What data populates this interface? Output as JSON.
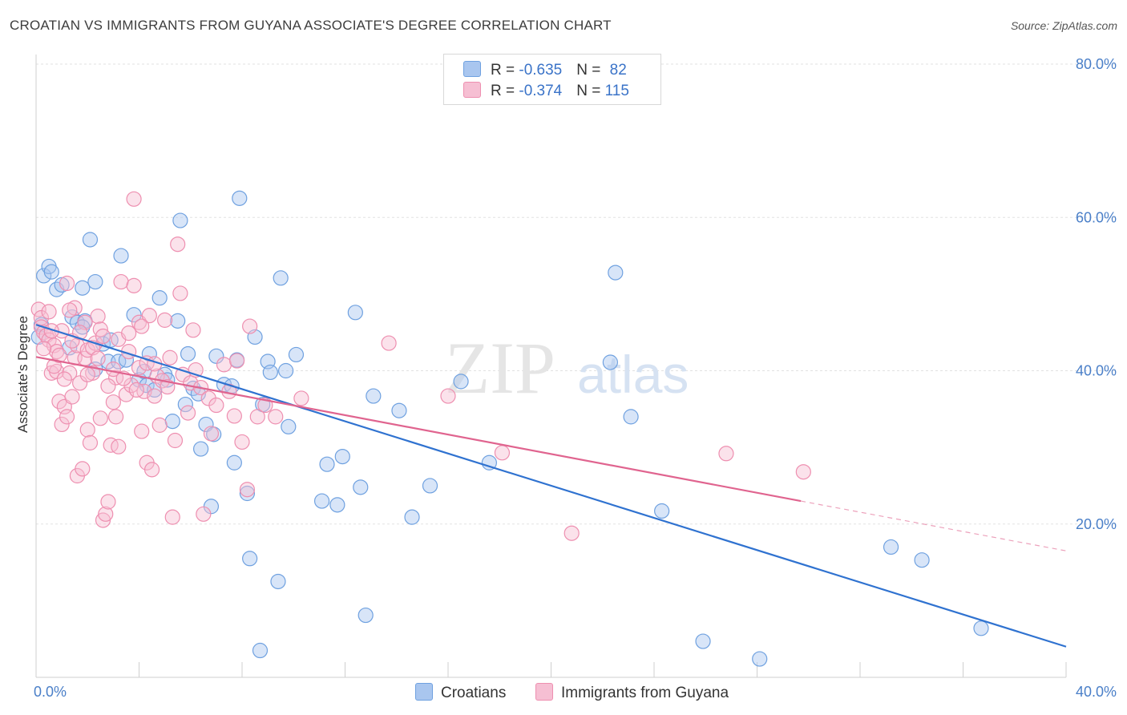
{
  "title": "CROATIAN VS IMMIGRANTS FROM GUYANA ASSOCIATE'S DEGREE CORRELATION CHART",
  "source": "Source: ZipAtlas.com",
  "watermark": {
    "zip": "ZIP",
    "atlas": "atlas"
  },
  "legend": {
    "rows": [
      {
        "r_label": "R = ",
        "r_value": "-0.635",
        "n_label": "N = ",
        "n_value": "82"
      },
      {
        "r_label": "R = ",
        "r_value": "-0.374",
        "n_label": "N = ",
        "n_value": "115"
      }
    ]
  },
  "chart_data": {
    "type": "scatter",
    "title": "CROATIAN VS IMMIGRANTS FROM GUYANA ASSOCIATE'S DEGREE CORRELATION CHART",
    "xlabel": "",
    "ylabel": "Associate's Degree",
    "xlim": [
      0,
      40
    ],
    "ylim": [
      0,
      80
    ],
    "x_tick_labels": [
      "0.0%",
      "40.0%"
    ],
    "y_ticks": [
      20,
      40,
      60,
      80
    ],
    "y_tick_labels": [
      "20.0%",
      "40.0%",
      "60.0%",
      "80.0%"
    ],
    "grid": true,
    "legend_position": "top-center",
    "series": [
      {
        "name": "Croatians",
        "color": "#6fa1e0",
        "fill": "#a9c6ef",
        "line_color": "#2f72d0",
        "trend": {
          "x": [
            0,
            40
          ],
          "y": [
            46.0,
            4.0
          ]
        },
        "points": [
          [
            0.2,
            46.0
          ],
          [
            0.3,
            52.4
          ],
          [
            0.5,
            53.6
          ],
          [
            0.6,
            52.9
          ],
          [
            0.8,
            50.6
          ],
          [
            1.0,
            51.2
          ],
          [
            1.3,
            43.0
          ],
          [
            1.4,
            47.0
          ],
          [
            1.6,
            46.3
          ],
          [
            1.8,
            50.8
          ],
          [
            1.9,
            46.5
          ],
          [
            2.1,
            57.1
          ],
          [
            2.3,
            51.6
          ],
          [
            2.3,
            40.2
          ],
          [
            2.6,
            43.5
          ],
          [
            2.8,
            41.2
          ],
          [
            2.9,
            44.0
          ],
          [
            3.2,
            41.2
          ],
          [
            3.3,
            55.0
          ],
          [
            3.5,
            41.4
          ],
          [
            3.8,
            47.3
          ],
          [
            4.0,
            38.8
          ],
          [
            4.2,
            39.9
          ],
          [
            4.3,
            38.1
          ],
          [
            4.4,
            42.2
          ],
          [
            4.6,
            37.5
          ],
          [
            4.8,
            49.5
          ],
          [
            5.0,
            39.5
          ],
          [
            5.1,
            38.8
          ],
          [
            5.3,
            33.4
          ],
          [
            5.5,
            46.5
          ],
          [
            5.6,
            59.6
          ],
          [
            5.8,
            35.6
          ],
          [
            5.9,
            42.2
          ],
          [
            6.1,
            37.7
          ],
          [
            6.3,
            37.0
          ],
          [
            6.4,
            29.8
          ],
          [
            6.6,
            33.0
          ],
          [
            6.8,
            22.3
          ],
          [
            6.9,
            31.7
          ],
          [
            7.0,
            41.9
          ],
          [
            7.3,
            38.2
          ],
          [
            7.6,
            38.0
          ],
          [
            7.7,
            28.0
          ],
          [
            7.8,
            41.4
          ],
          [
            7.9,
            62.5
          ],
          [
            8.2,
            24.0
          ],
          [
            8.3,
            15.5
          ],
          [
            8.5,
            44.4
          ],
          [
            8.7,
            3.5
          ],
          [
            8.8,
            35.6
          ],
          [
            9.0,
            41.2
          ],
          [
            9.1,
            39.8
          ],
          [
            9.4,
            12.5
          ],
          [
            9.5,
            52.1
          ],
          [
            9.7,
            40.0
          ],
          [
            9.8,
            32.7
          ],
          [
            10.1,
            42.1
          ],
          [
            11.1,
            23.0
          ],
          [
            11.3,
            27.8
          ],
          [
            11.7,
            22.5
          ],
          [
            11.9,
            28.8
          ],
          [
            12.4,
            47.6
          ],
          [
            12.6,
            24.8
          ],
          [
            12.8,
            8.1
          ],
          [
            13.1,
            36.7
          ],
          [
            14.1,
            34.8
          ],
          [
            14.6,
            20.9
          ],
          [
            15.3,
            25.0
          ],
          [
            16.5,
            38.6
          ],
          [
            17.6,
            28.0
          ],
          [
            22.3,
            41.1
          ],
          [
            22.5,
            52.8
          ],
          [
            23.1,
            34.0
          ],
          [
            24.3,
            21.7
          ],
          [
            25.9,
            4.7
          ],
          [
            28.1,
            2.4
          ],
          [
            33.2,
            17.0
          ],
          [
            34.4,
            15.3
          ],
          [
            36.7,
            6.4
          ],
          [
            0.1,
            44.4
          ],
          [
            1.8,
            45.7
          ]
        ]
      },
      {
        "name": "Immigrants from Guyana",
        "color": "#ee8fb0",
        "fill": "#f6bfd3",
        "line_color": "#e0648f",
        "trend": {
          "x": [
            0,
            29.7
          ],
          "y": [
            41.8,
            23.0
          ]
        },
        "trend_dashed": {
          "x": [
            29.7,
            40
          ],
          "y": [
            23.0,
            16.5
          ]
        },
        "points": [
          [
            0.1,
            48.0
          ],
          [
            0.2,
            46.9
          ],
          [
            0.2,
            45.7
          ],
          [
            0.3,
            45.0
          ],
          [
            0.4,
            44.6
          ],
          [
            0.5,
            47.7
          ],
          [
            0.5,
            44.0
          ],
          [
            0.6,
            39.7
          ],
          [
            0.7,
            43.3
          ],
          [
            0.8,
            42.5
          ],
          [
            0.8,
            39.9
          ],
          [
            0.9,
            36.0
          ],
          [
            1.0,
            45.2
          ],
          [
            1.0,
            33.0
          ],
          [
            1.1,
            35.3
          ],
          [
            1.2,
            34.0
          ],
          [
            1.2,
            51.4
          ],
          [
            1.3,
            39.7
          ],
          [
            1.4,
            36.6
          ],
          [
            1.5,
            48.2
          ],
          [
            1.5,
            41.7
          ],
          [
            1.6,
            43.3
          ],
          [
            1.6,
            26.3
          ],
          [
            1.7,
            38.4
          ],
          [
            1.8,
            27.2
          ],
          [
            1.9,
            46.3
          ],
          [
            1.9,
            41.6
          ],
          [
            2.0,
            42.7
          ],
          [
            2.0,
            32.3
          ],
          [
            2.1,
            30.6
          ],
          [
            2.2,
            39.7
          ],
          [
            2.3,
            43.6
          ],
          [
            2.4,
            47.1
          ],
          [
            2.5,
            45.4
          ],
          [
            2.5,
            33.8
          ],
          [
            2.6,
            20.5
          ],
          [
            2.7,
            21.3
          ],
          [
            2.8,
            22.9
          ],
          [
            2.9,
            30.3
          ],
          [
            3.0,
            35.9
          ],
          [
            3.1,
            39.1
          ],
          [
            3.1,
            34.0
          ],
          [
            3.2,
            30.1
          ],
          [
            3.3,
            51.6
          ],
          [
            3.5,
            36.9
          ],
          [
            3.6,
            42.5
          ],
          [
            3.7,
            38.1
          ],
          [
            3.8,
            51.1
          ],
          [
            3.8,
            62.4
          ],
          [
            4.0,
            46.3
          ],
          [
            4.0,
            40.4
          ],
          [
            4.1,
            32.1
          ],
          [
            4.2,
            37.3
          ],
          [
            4.3,
            28.0
          ],
          [
            4.4,
            47.2
          ],
          [
            4.5,
            27.1
          ],
          [
            4.6,
            36.7
          ],
          [
            4.7,
            39.3
          ],
          [
            4.8,
            32.9
          ],
          [
            4.9,
            38.7
          ],
          [
            5.0,
            46.6
          ],
          [
            5.1,
            37.9
          ],
          [
            5.2,
            41.7
          ],
          [
            5.3,
            20.9
          ],
          [
            5.4,
            30.9
          ],
          [
            5.5,
            56.5
          ],
          [
            5.6,
            50.1
          ],
          [
            5.7,
            39.5
          ],
          [
            5.9,
            34.5
          ],
          [
            6.0,
            38.4
          ],
          [
            6.1,
            45.3
          ],
          [
            6.2,
            40.1
          ],
          [
            6.4,
            37.8
          ],
          [
            6.5,
            21.3
          ],
          [
            6.7,
            36.4
          ],
          [
            6.8,
            31.8
          ],
          [
            7.0,
            35.5
          ],
          [
            7.3,
            40.8
          ],
          [
            7.5,
            37.3
          ],
          [
            7.7,
            34.1
          ],
          [
            7.8,
            41.3
          ],
          [
            8.0,
            30.7
          ],
          [
            8.2,
            24.5
          ],
          [
            8.3,
            45.8
          ],
          [
            8.6,
            34.0
          ],
          [
            8.9,
            35.5
          ],
          [
            9.3,
            34.0
          ],
          [
            10.3,
            36.4
          ],
          [
            13.7,
            43.6
          ],
          [
            16.0,
            36.7
          ],
          [
            18.1,
            29.3
          ],
          [
            20.8,
            18.8
          ],
          [
            26.8,
            29.2
          ],
          [
            29.8,
            26.8
          ],
          [
            0.3,
            42.9
          ],
          [
            0.6,
            45.2
          ],
          [
            0.7,
            40.6
          ],
          [
            0.9,
            42.0
          ],
          [
            1.1,
            38.9
          ],
          [
            1.3,
            47.9
          ],
          [
            1.4,
            43.9
          ],
          [
            1.7,
            45.0
          ],
          [
            2.0,
            39.5
          ],
          [
            2.2,
            43.0
          ],
          [
            2.4,
            41.6
          ],
          [
            2.6,
            44.5
          ],
          [
            2.8,
            38.0
          ],
          [
            3.0,
            40.2
          ],
          [
            3.2,
            44.1
          ],
          [
            3.4,
            39.0
          ],
          [
            3.6,
            44.9
          ],
          [
            3.9,
            37.5
          ],
          [
            4.1,
            45.8
          ],
          [
            4.3,
            41.0
          ],
          [
            4.6,
            40.9
          ]
        ]
      }
    ]
  }
}
